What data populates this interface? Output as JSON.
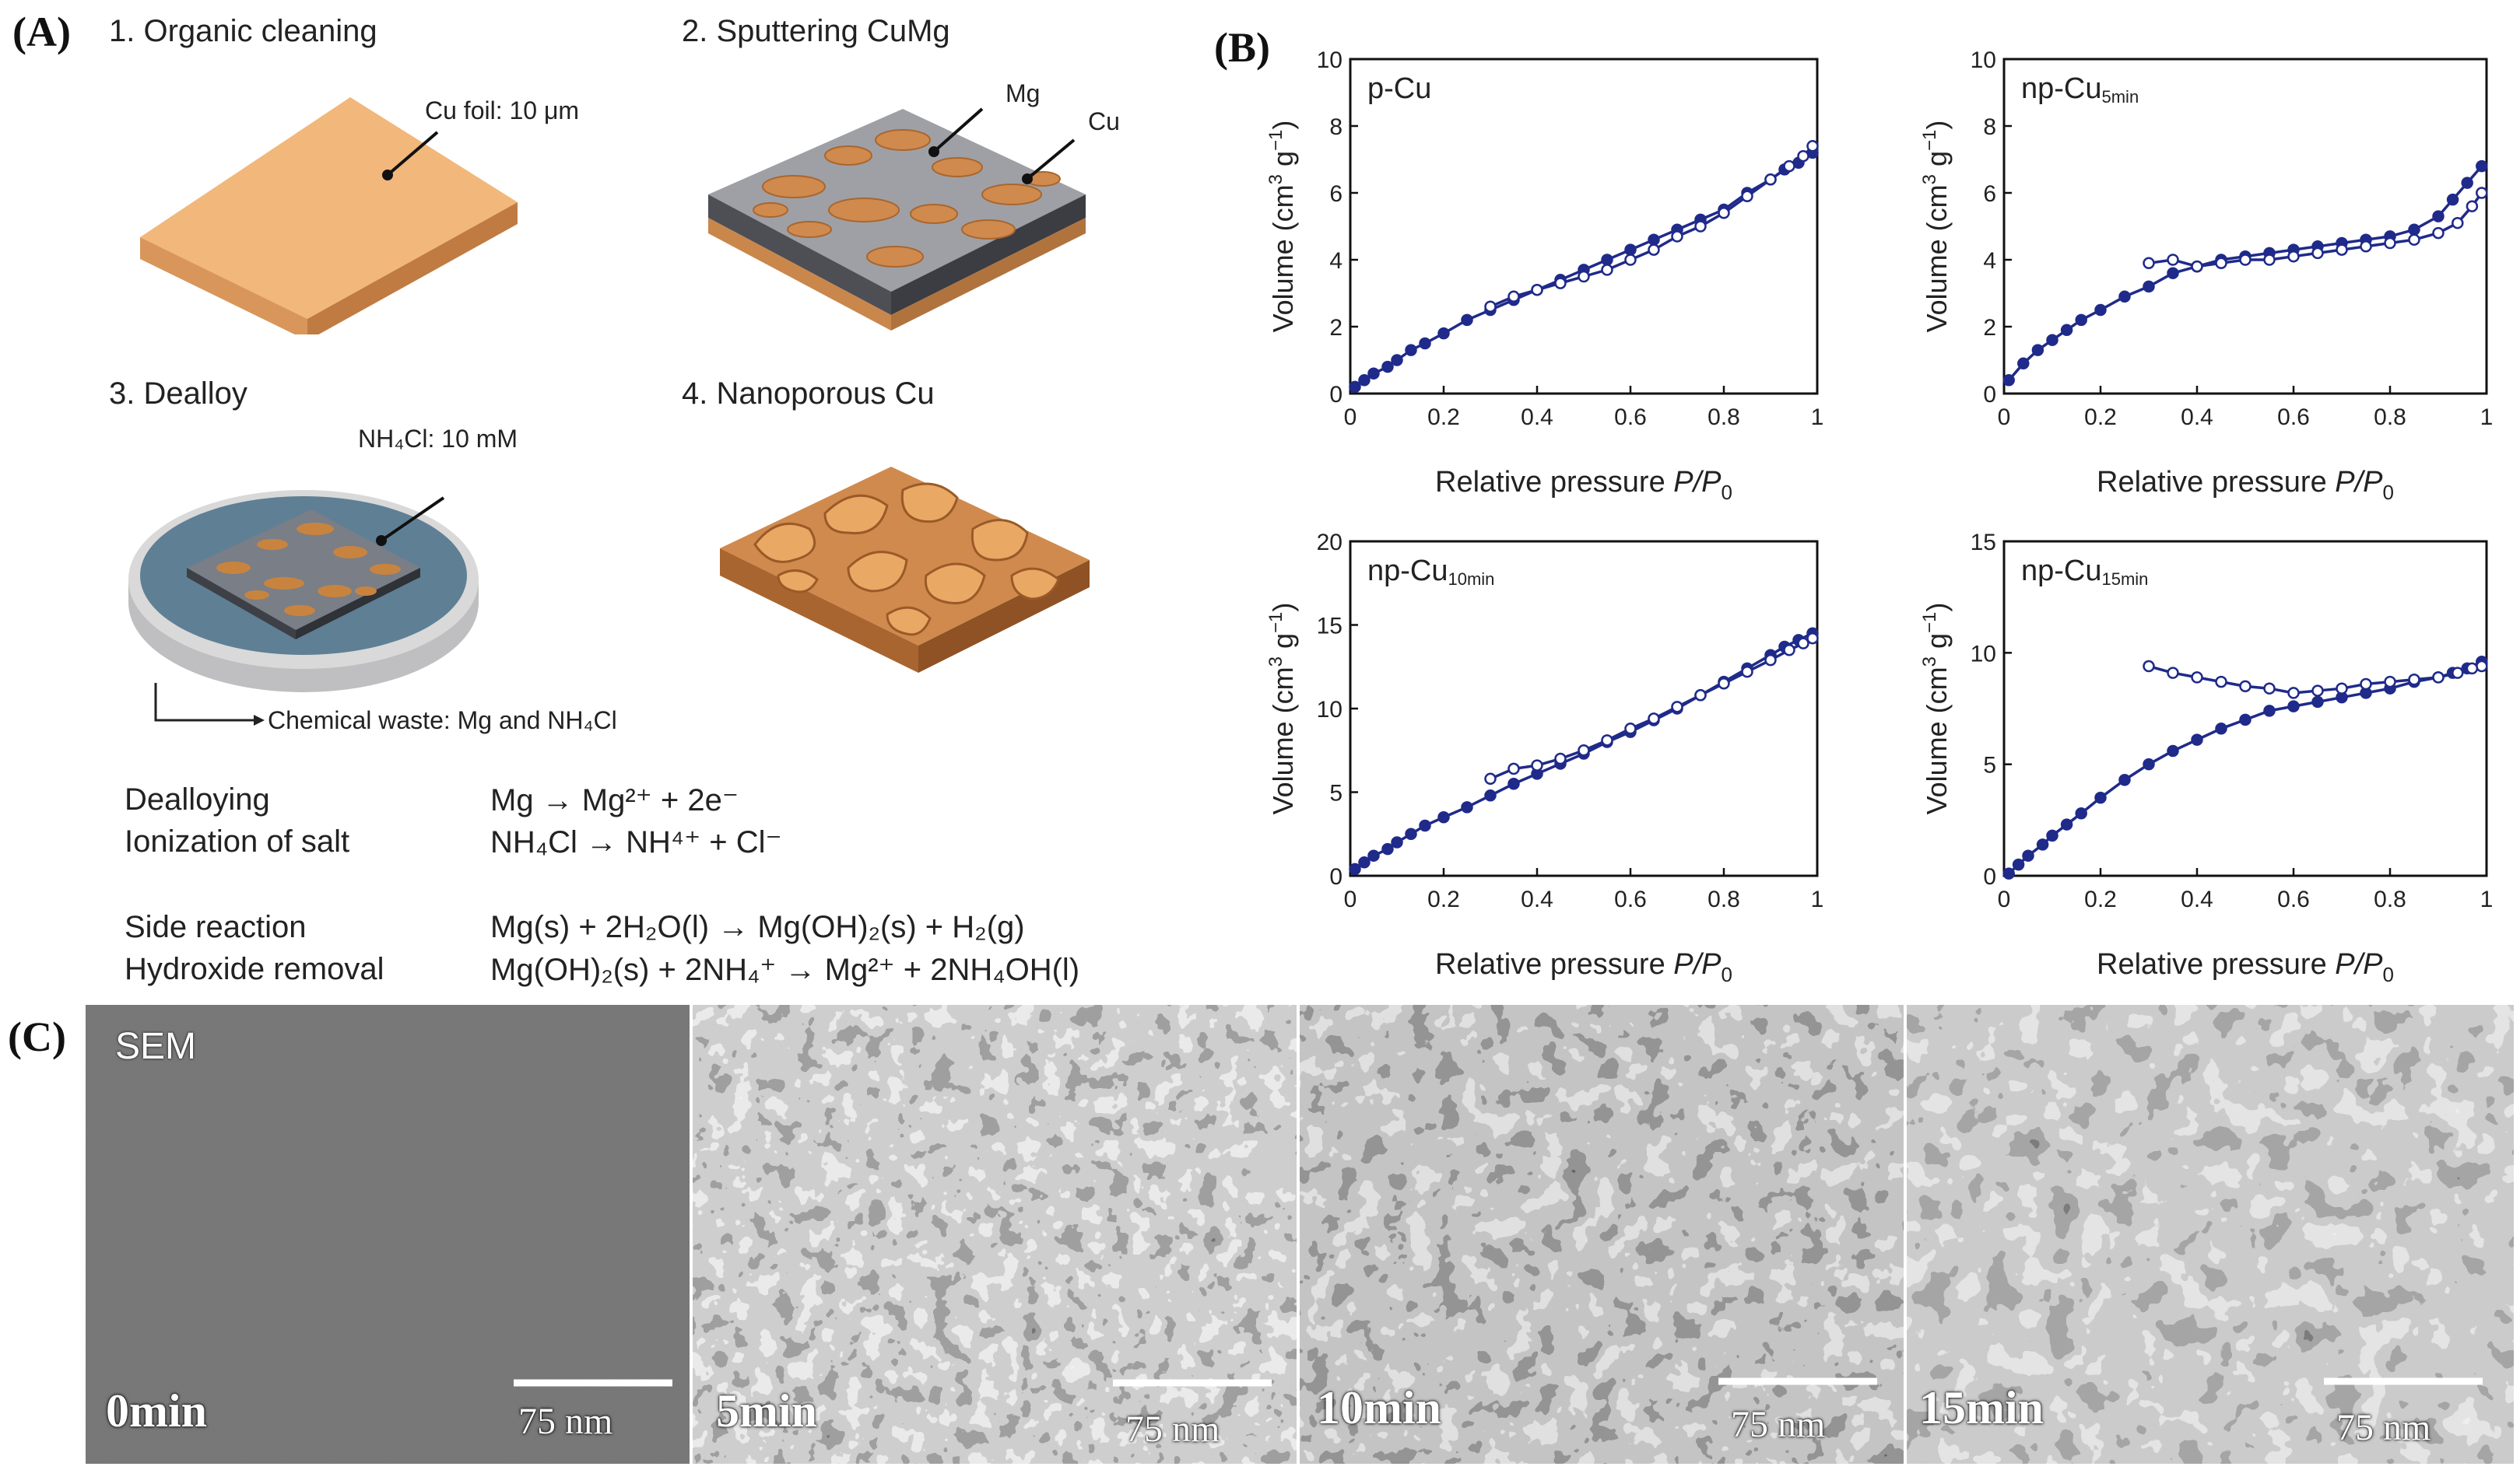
{
  "panel_a": {
    "letter": "(A)",
    "steps": [
      {
        "label": "1. Organic cleaning"
      },
      {
        "label": "2. Sputtering CuMg"
      },
      {
        "label": "3. Dealloy"
      },
      {
        "label": "4. Nanoporous Cu"
      }
    ],
    "callouts": {
      "cu_foil": "Cu foil: 10 μm",
      "mg": "Mg",
      "cu": "Cu",
      "nh4cl": "NH₄Cl: 10 mM",
      "waste": "Chemical waste: Mg and NH₄Cl"
    },
    "colors": {
      "copper": "#F2B77A",
      "copper_dark": "#D08A4E",
      "substrate": "#8F8F93",
      "dish": "#5F7F95"
    },
    "equations": [
      {
        "name": "Dealloying",
        "formula": "Mg → Mg²⁺ + 2e⁻"
      },
      {
        "name": "Ionization of salt",
        "formula": "NH₄Cl → NH⁴⁺ + Cl⁻"
      },
      {
        "name": "Side reaction",
        "formula": "Mg(s) + 2H₂O(l) → Mg(OH)₂(s) + H₂(g)"
      },
      {
        "name": "Hydroxide removal",
        "formula": "Mg(OH)₂(s) + 2NH₄⁺ → Mg²⁺ + 2NH₄OH(l)"
      }
    ]
  },
  "panel_b": {
    "letter": "(B)",
    "series_color": "#1F2A8A"
  },
  "chart_data": [
    {
      "type": "line",
      "title": "p-Cu",
      "xlabel": "Relative pressure P/P0",
      "ylabel": "Volume (cm3 g-1)",
      "xlim": [
        0,
        1
      ],
      "ylim": [
        0,
        10
      ],
      "xticks": [
        "0",
        "0.2",
        "0.4",
        "0.6",
        "0.8",
        "1"
      ],
      "yticks": [
        "0",
        "2",
        "4",
        "6",
        "8",
        "10"
      ],
      "grid": false,
      "series": [
        {
          "marker": "filled",
          "x": [
            0.01,
            0.03,
            0.05,
            0.08,
            0.1,
            0.13,
            0.16,
            0.2,
            0.25,
            0.3,
            0.35,
            0.4,
            0.45,
            0.5,
            0.55,
            0.6,
            0.65,
            0.7,
            0.75,
            0.8,
            0.85,
            0.9,
            0.93,
            0.96,
            0.99
          ],
          "y": [
            0.2,
            0.4,
            0.6,
            0.8,
            1.0,
            1.3,
            1.5,
            1.8,
            2.2,
            2.5,
            2.8,
            3.1,
            3.4,
            3.7,
            4.0,
            4.3,
            4.6,
            4.9,
            5.2,
            5.5,
            6.0,
            6.4,
            6.7,
            6.9,
            7.2
          ]
        },
        {
          "marker": "open",
          "x": [
            0.99,
            0.97,
            0.94,
            0.9,
            0.85,
            0.8,
            0.75,
            0.7,
            0.65,
            0.6,
            0.55,
            0.5,
            0.45,
            0.4,
            0.35,
            0.3
          ],
          "y": [
            7.4,
            7.1,
            6.8,
            6.4,
            5.9,
            5.4,
            5.0,
            4.7,
            4.3,
            4.0,
            3.7,
            3.5,
            3.3,
            3.1,
            2.9,
            2.6
          ]
        }
      ]
    },
    {
      "type": "line",
      "title": "np-Cu5min",
      "xlabel": "Relative pressure P/P0",
      "ylabel": "Volume (cm3 g-1)",
      "xlim": [
        0,
        1
      ],
      "ylim": [
        0,
        10
      ],
      "xticks": [
        "0",
        "0.2",
        "0.4",
        "0.6",
        "0.8",
        "1"
      ],
      "yticks": [
        "0",
        "2",
        "4",
        "6",
        "8",
        "10"
      ],
      "grid": false,
      "series": [
        {
          "marker": "filled",
          "x": [
            0.01,
            0.04,
            0.07,
            0.1,
            0.13,
            0.16,
            0.2,
            0.25,
            0.3,
            0.35,
            0.4,
            0.45,
            0.5,
            0.55,
            0.6,
            0.65,
            0.7,
            0.75,
            0.8,
            0.85,
            0.9,
            0.93,
            0.96,
            0.99
          ],
          "y": [
            0.4,
            0.9,
            1.3,
            1.6,
            1.9,
            2.2,
            2.5,
            2.9,
            3.2,
            3.6,
            3.8,
            4.0,
            4.1,
            4.2,
            4.3,
            4.4,
            4.5,
            4.6,
            4.7,
            4.9,
            5.3,
            5.8,
            6.3,
            6.8
          ]
        },
        {
          "marker": "open",
          "x": [
            0.99,
            0.97,
            0.94,
            0.9,
            0.85,
            0.8,
            0.75,
            0.7,
            0.65,
            0.6,
            0.55,
            0.5,
            0.45,
            0.4,
            0.35,
            0.3
          ],
          "y": [
            6.0,
            5.6,
            5.1,
            4.8,
            4.6,
            4.5,
            4.4,
            4.3,
            4.2,
            4.1,
            4.0,
            4.0,
            3.9,
            3.8,
            4.0,
            3.9
          ]
        }
      ]
    },
    {
      "type": "line",
      "title": "np-Cu10min",
      "xlabel": "Relative pressure P/P0",
      "ylabel": "Volume (cm3 g-1)",
      "xlim": [
        0,
        1
      ],
      "ylim": [
        0,
        20
      ],
      "xticks": [
        "0",
        "0.2",
        "0.4",
        "0.6",
        "0.8",
        "1"
      ],
      "yticks": [
        "0",
        "5",
        "10",
        "15",
        "20"
      ],
      "grid": false,
      "series": [
        {
          "marker": "filled",
          "x": [
            0.01,
            0.03,
            0.05,
            0.08,
            0.1,
            0.13,
            0.16,
            0.2,
            0.25,
            0.3,
            0.35,
            0.4,
            0.45,
            0.5,
            0.55,
            0.6,
            0.65,
            0.7,
            0.75,
            0.8,
            0.85,
            0.9,
            0.93,
            0.96,
            0.99
          ],
          "y": [
            0.4,
            0.8,
            1.2,
            1.6,
            2.0,
            2.5,
            3.0,
            3.5,
            4.1,
            4.8,
            5.5,
            6.1,
            6.7,
            7.3,
            8.0,
            8.6,
            9.3,
            10.0,
            10.8,
            11.6,
            12.4,
            13.2,
            13.7,
            14.1,
            14.5
          ]
        },
        {
          "marker": "open",
          "x": [
            0.99,
            0.97,
            0.94,
            0.9,
            0.85,
            0.8,
            0.75,
            0.7,
            0.65,
            0.6,
            0.55,
            0.5,
            0.45,
            0.4,
            0.35,
            0.3
          ],
          "y": [
            14.2,
            13.9,
            13.5,
            12.9,
            12.2,
            11.5,
            10.8,
            10.1,
            9.4,
            8.8,
            8.1,
            7.5,
            7.0,
            6.6,
            6.4,
            5.8
          ]
        }
      ]
    },
    {
      "type": "line",
      "title": "np-Cu15min",
      "xlabel": "Relative pressure P/P0",
      "ylabel": "Volume (cm3 g-1)",
      "xlim": [
        0,
        1
      ],
      "ylim": [
        0,
        15
      ],
      "xticks": [
        "0",
        "0.2",
        "0.4",
        "0.6",
        "0.8",
        "1"
      ],
      "yticks": [
        "0",
        "5",
        "10",
        "15"
      ],
      "grid": false,
      "series": [
        {
          "marker": "filled",
          "x": [
            0.01,
            0.03,
            0.05,
            0.08,
            0.1,
            0.13,
            0.16,
            0.2,
            0.25,
            0.3,
            0.35,
            0.4,
            0.45,
            0.5,
            0.55,
            0.6,
            0.65,
            0.7,
            0.75,
            0.8,
            0.85,
            0.9,
            0.93,
            0.96,
            0.99
          ],
          "y": [
            0.1,
            0.5,
            0.9,
            1.4,
            1.8,
            2.3,
            2.8,
            3.5,
            4.3,
            5.0,
            5.6,
            6.1,
            6.6,
            7.0,
            7.4,
            7.6,
            7.8,
            8.0,
            8.2,
            8.4,
            8.7,
            8.9,
            9.1,
            9.3,
            9.6
          ]
        },
        {
          "marker": "open",
          "x": [
            0.99,
            0.97,
            0.94,
            0.9,
            0.85,
            0.8,
            0.75,
            0.7,
            0.65,
            0.6,
            0.55,
            0.5,
            0.45,
            0.4,
            0.35,
            0.3
          ],
          "y": [
            9.4,
            9.3,
            9.1,
            8.9,
            8.8,
            8.7,
            8.6,
            8.4,
            8.3,
            8.2,
            8.4,
            8.5,
            8.7,
            8.9,
            9.1,
            9.4
          ]
        }
      ]
    }
  ],
  "panel_c": {
    "letter": "(C)",
    "tag": "SEM",
    "images": [
      {
        "time": "0min",
        "scale": "75 nm"
      },
      {
        "time": "5min",
        "scale": "75 nm"
      },
      {
        "time": "10min",
        "scale": "75 nm"
      },
      {
        "time": "15min",
        "scale": "75 nm"
      }
    ]
  }
}
